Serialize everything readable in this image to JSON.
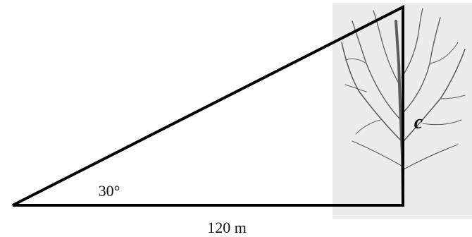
{
  "labels": {
    "angle": "30°",
    "base": "120 m",
    "height": "c"
  }
}
